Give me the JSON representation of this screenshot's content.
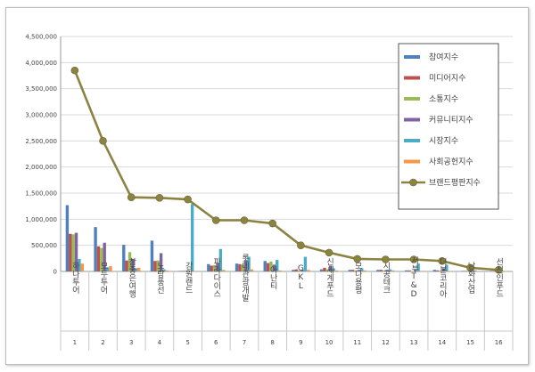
{
  "chart_data": {
    "type": "bar",
    "categories": [
      "하나투어",
      "모두투어",
      "참좋은여행",
      "노랑풍선",
      "강원랜드",
      "파라다이스",
      "롯데관광개발",
      "아난티",
      "GKL",
      "신세계푸드",
      "모나용평",
      "시공테크",
      "서부T&D",
      "더본코리아",
      "남화산업",
      "선진인푸드"
    ],
    "category_numbers": [
      "1",
      "2",
      "3",
      "4",
      "5",
      "6",
      "7",
      "8",
      "9",
      "10",
      "11",
      "12",
      "13",
      "14",
      "15",
      "16"
    ],
    "ylim": [
      0,
      4500000
    ],
    "yticks": [
      "0",
      "500,000",
      "1,000,000",
      "1,500,000",
      "2,000,000",
      "2,500,000",
      "3,000,000",
      "3,500,000",
      "4,000,000",
      "4,500,000"
    ],
    "yticks_values": [
      0,
      500000,
      1000000,
      1500000,
      2000000,
      2500000,
      3000000,
      3500000,
      4000000,
      4500000
    ],
    "legend_position": "top-right",
    "grid": "horizontal",
    "series": [
      {
        "name": "참여지수",
        "kind": "bar",
        "color": "#4f81bd",
        "values": [
          1270000,
          850000,
          510000,
          590000,
          10000,
          140000,
          150000,
          200000,
          30000,
          40000,
          30000,
          30000,
          20000,
          30000,
          10000,
          10000
        ]
      },
      {
        "name": "미디어지수",
        "kind": "bar",
        "color": "#c0504d",
        "values": [
          720000,
          480000,
          210000,
          200000,
          10000,
          110000,
          140000,
          160000,
          40000,
          70000,
          30000,
          30000,
          20000,
          20000,
          10000,
          10000
        ]
      },
      {
        "name": "소통지수",
        "kind": "bar",
        "color": "#9bbb59",
        "values": [
          710000,
          450000,
          370000,
          210000,
          20000,
          120000,
          130000,
          190000,
          20000,
          40000,
          20000,
          20000,
          10000,
          10000,
          10000,
          10000
        ]
      },
      {
        "name": "커뮤니티지수",
        "kind": "bar",
        "color": "#8064a2",
        "values": [
          740000,
          550000,
          240000,
          350000,
          10000,
          160000,
          210000,
          130000,
          30000,
          110000,
          30000,
          30000,
          30000,
          60000,
          20000,
          10000
        ]
      },
      {
        "name": "시장지수",
        "kind": "bar",
        "color": "#4bacc6",
        "values": [
          240000,
          80000,
          60000,
          40000,
          1290000,
          430000,
          280000,
          220000,
          280000,
          60000,
          60000,
          40000,
          150000,
          130000,
          20000,
          10000
        ]
      },
      {
        "name": "사회공헌지수",
        "kind": "bar",
        "color": "#f79646",
        "values": [
          150000,
          100000,
          70000,
          20000,
          10000,
          30000,
          40000,
          20000,
          30000,
          20000,
          20000,
          20000,
          10000,
          10000,
          10000,
          5000
        ]
      },
      {
        "name": "브랜드평판지수",
        "kind": "line",
        "color": "#8b8341",
        "values": [
          3850000,
          2500000,
          1420000,
          1410000,
          1380000,
          980000,
          980000,
          920000,
          500000,
          360000,
          240000,
          230000,
          230000,
          200000,
          70000,
          30000
        ]
      }
    ]
  }
}
